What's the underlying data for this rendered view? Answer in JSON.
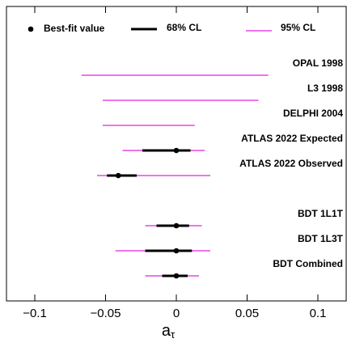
{
  "chart_data": {
    "type": "forest",
    "categories": [
      "OPAL 1998",
      "L3 1998",
      "DELPHI 2004",
      "ATLAS 2022 Expected",
      "ATLAS 2022 Observed",
      null,
      "BDT 1L1T",
      "BDT 1L3T",
      "BDT Combined"
    ],
    "best_fit": {
      "name": "Best-fit value",
      "color": "#000000",
      "values": [
        null,
        null,
        null,
        0,
        -0.041,
        null,
        0,
        0,
        0
      ]
    },
    "cl68": {
      "name": "68% CL",
      "color": "#000000",
      "low": [
        null,
        null,
        null,
        -0.024,
        -0.049,
        null,
        -0.014,
        -0.022,
        -0.01
      ],
      "high": [
        null,
        null,
        null,
        0.01,
        -0.028,
        null,
        0.009,
        0.011,
        0.008
      ]
    },
    "cl95": {
      "name": "95% CL",
      "color": "#e020e0",
      "low": [
        -0.067,
        -0.052,
        -0.052,
        -0.038,
        -0.056,
        null,
        -0.022,
        -0.043,
        -0.022
      ],
      "high": [
        0.065,
        0.058,
        0.013,
        0.02,
        0.024,
        null,
        0.018,
        0.024,
        0.016
      ]
    },
    "xlabel": "a",
    "xlabel_subscript": "τ",
    "xlim": [
      -0.12,
      0.12
    ],
    "xticks": [
      {
        "value": -0.1,
        "label": "−0.1"
      },
      {
        "value": -0.05,
        "label": "−0.05"
      },
      0,
      0.05,
      0.1
    ]
  }
}
